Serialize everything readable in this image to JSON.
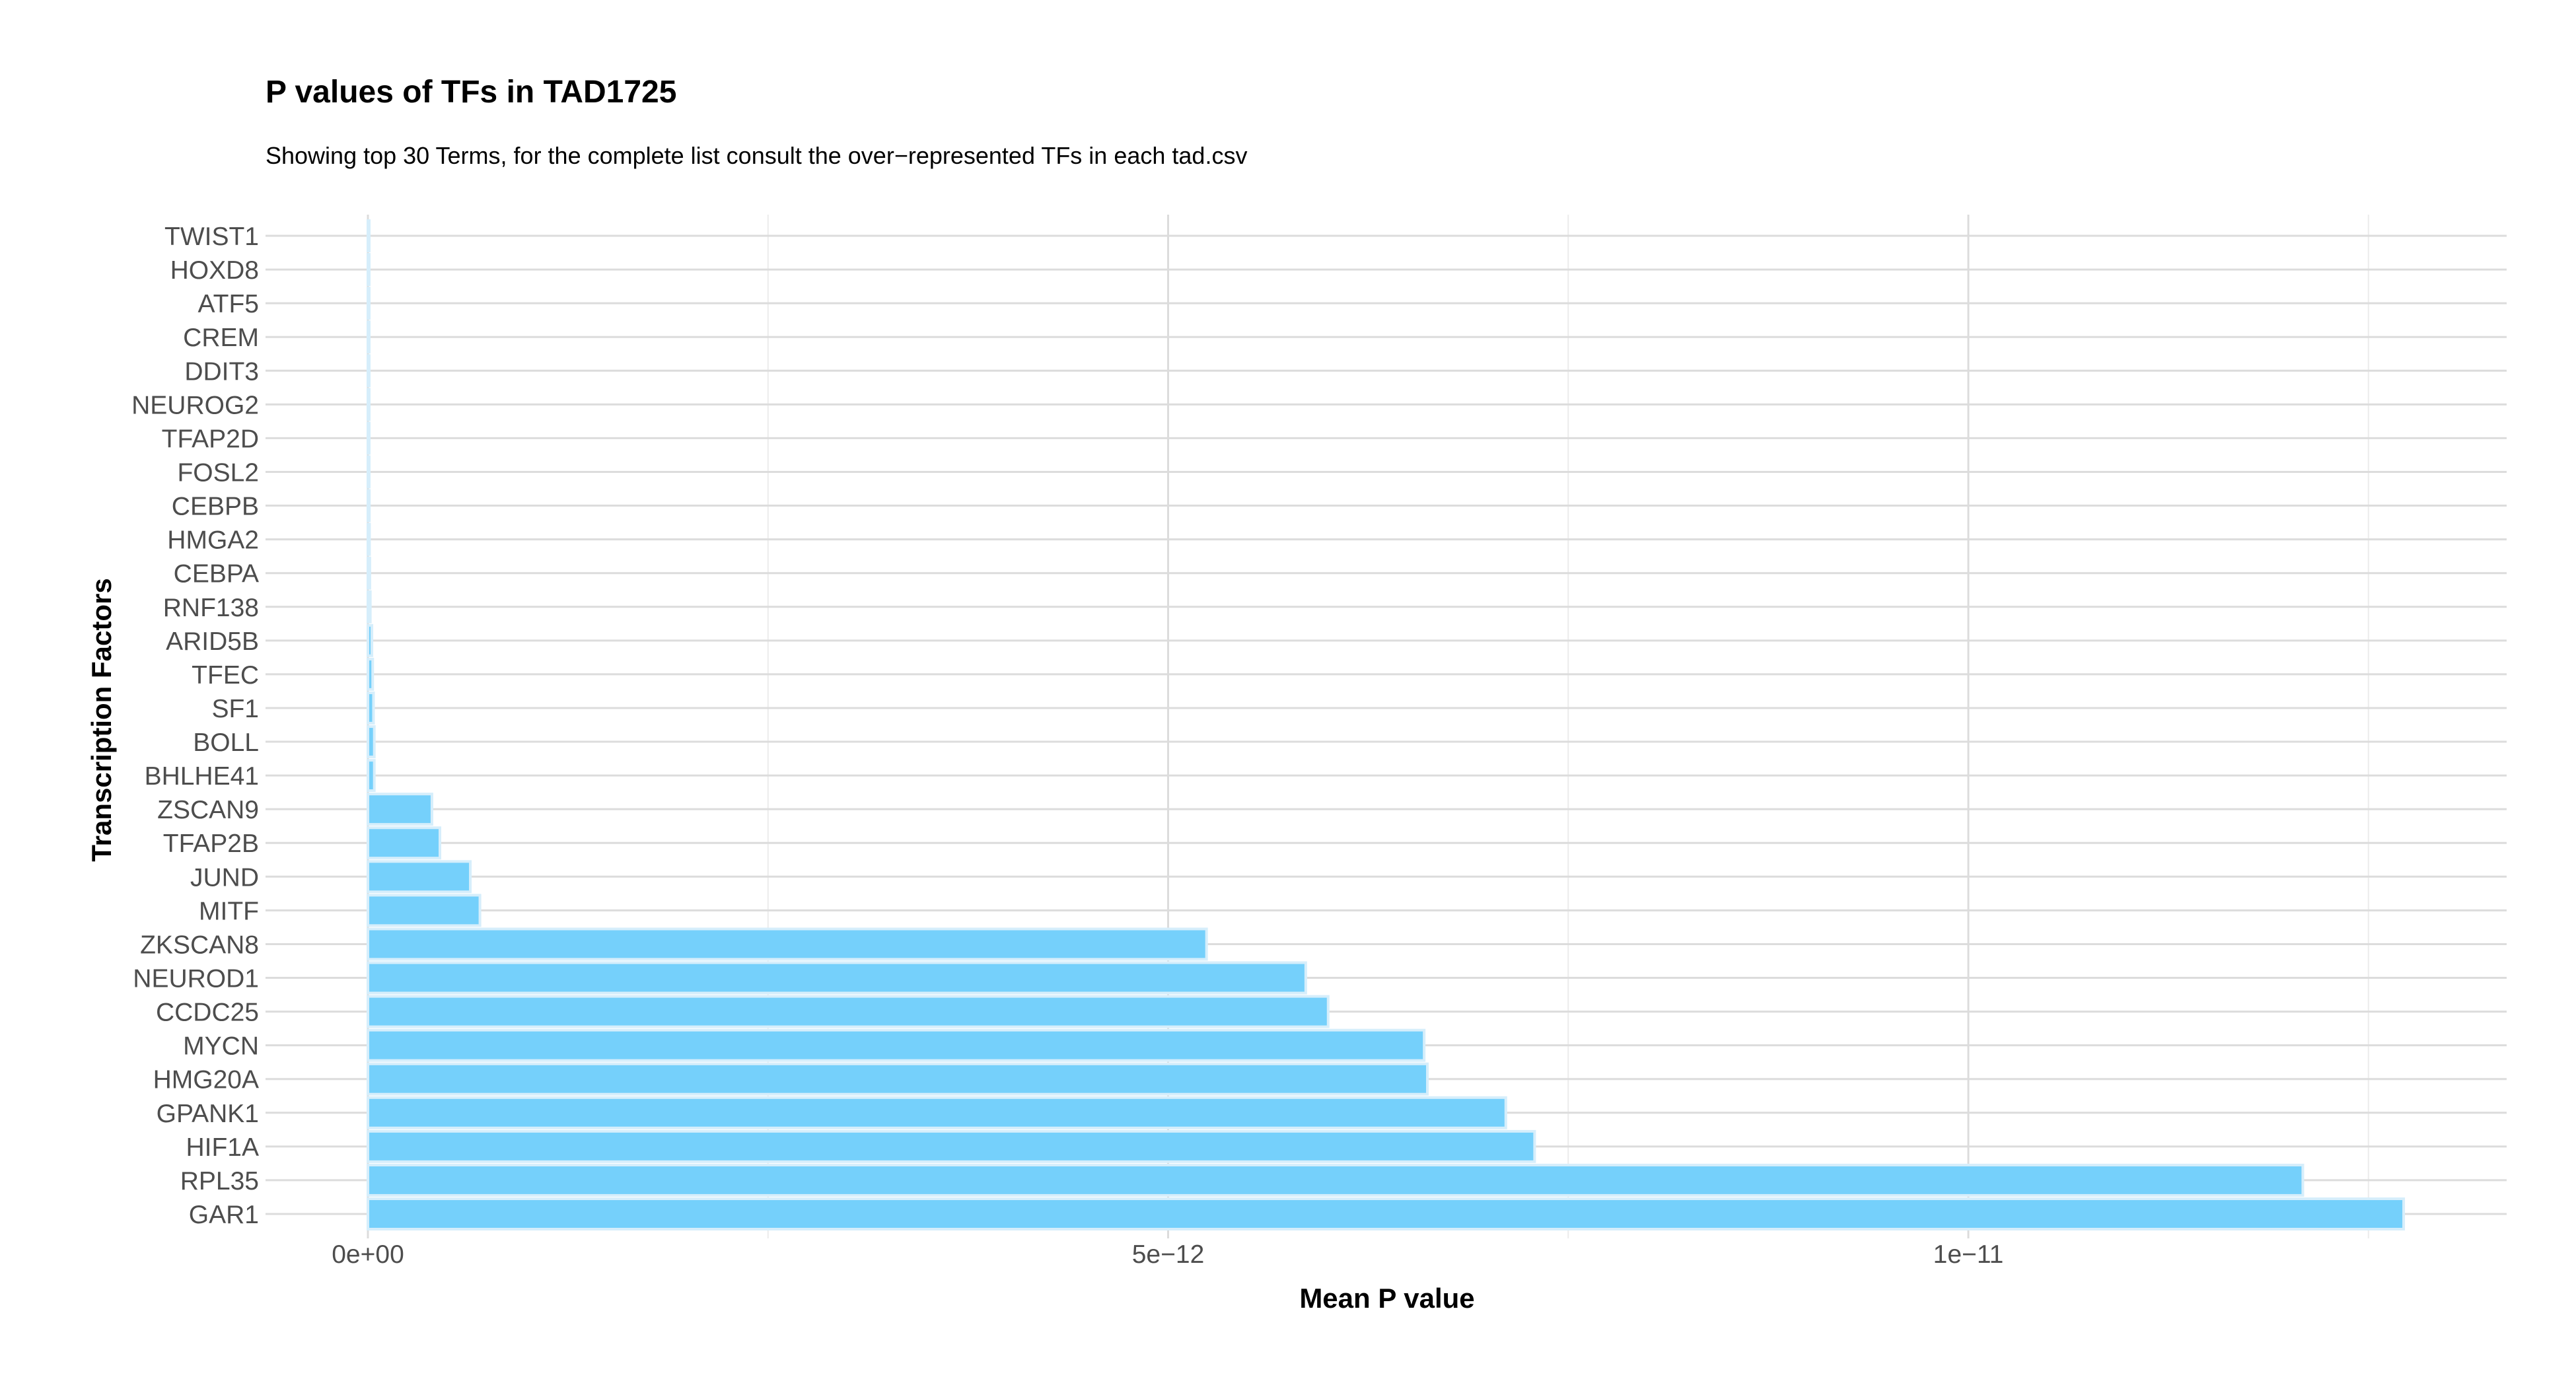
{
  "chart_data": {
    "type": "bar",
    "orientation": "horizontal",
    "title": "P values of TFs in TAD1725",
    "subtitle": "Showing top 30 Terms, for the complete list consult the over−represented TFs in each tad.csv",
    "xlabel": "Mean P value",
    "ylabel": "Transcription Factors",
    "xlim": [
      -6.4e-13,
      1.3e-11
    ],
    "x_ticks": [
      0,
      5e-12,
      1e-11
    ],
    "x_tick_labels": [
      "0e+00",
      "5e−12",
      "1e−11"
    ],
    "grid": true,
    "legend": "none",
    "bar_color": "#75D0FB",
    "bar_border_color": "#D6EEFB",
    "categories": [
      "GAR1",
      "RPL35",
      "HIF1A",
      "GPANK1",
      "HMG20A",
      "MYCN",
      "CCDC25",
      "NEUROD1",
      "ZKSCAN8",
      "MITF",
      "JUND",
      "TFAP2B",
      "ZSCAN9",
      "BHLHE41",
      "BOLL",
      "SF1",
      "TFEC",
      "ARID5B",
      "RNF138",
      "CEBPA",
      "HMGA2",
      "CEBPB",
      "FOSL2",
      "TFAP2D",
      "NEUROG2",
      "DDIT3",
      "CREM",
      "ATF5",
      "HOXD8",
      "TWIST1"
    ],
    "values": [
      1.272e-11,
      1.209e-11,
      7.29e-12,
      7.11e-12,
      6.62e-12,
      6.6e-12,
      6e-12,
      5.86e-12,
      5.24e-12,
      7e-13,
      6.4e-13,
      4.5e-13,
      4e-13,
      4e-14,
      4e-14,
      3.5e-14,
      3e-14,
      2.5e-14,
      1.5e-14,
      1.2e-14,
      1e-14,
      9e-15,
      8e-15,
      7e-15,
      5e-15,
      4e-15,
      3e-15,
      2e-15,
      1e-15,
      1e-15
    ]
  }
}
